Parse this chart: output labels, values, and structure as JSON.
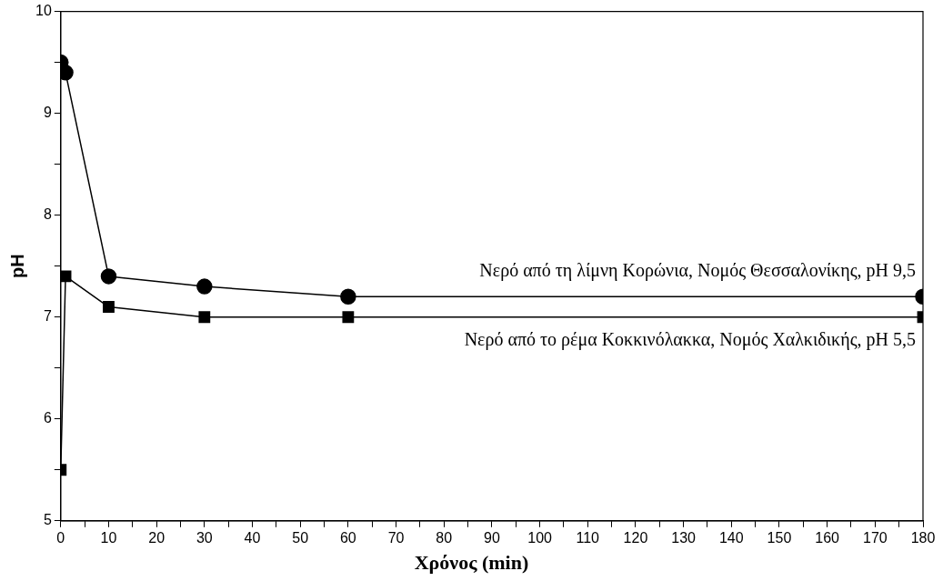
{
  "chart_data": {
    "type": "line",
    "xlabel": "Χρόνος (min)",
    "ylabel": "pH",
    "xlim": [
      0,
      180
    ],
    "xticks": [
      0,
      {
        "value": 5,
        "label": null
      },
      10,
      {
        "value": 15,
        "label": null
      },
      20,
      {
        "value": 25,
        "label": null
      },
      30,
      {
        "value": 35,
        "label": null
      },
      40,
      {
        "value": 45,
        "label": null
      },
      50,
      {
        "value": 55,
        "label": null
      },
      60,
      {
        "value": 65,
        "label": null
      },
      70,
      {
        "value": 75,
        "label": null
      },
      80,
      {
        "value": 85,
        "label": null
      },
      90,
      {
        "value": 95,
        "label": null
      },
      100,
      {
        "value": 105,
        "label": null
      },
      110,
      {
        "value": 115,
        "label": null
      },
      120,
      {
        "value": 125,
        "label": null
      },
      130,
      {
        "value": 135,
        "label": null
      },
      140,
      {
        "value": 145,
        "label": null
      },
      150,
      {
        "value": 155,
        "label": null
      },
      160,
      {
        "value": 165,
        "label": null
      },
      170,
      {
        "value": 175,
        "label": null
      },
      180
    ],
    "ylim": [
      5,
      10
    ],
    "yticks": [
      5,
      {
        "value": 5.5,
        "label": null
      },
      6,
      {
        "value": 6.5,
        "label": null
      },
      7,
      {
        "value": 7.5,
        "label": null
      },
      8,
      {
        "value": 8.5,
        "label": null
      },
      9,
      {
        "value": 9.5,
        "label": null
      },
      10
    ],
    "grid": false,
    "legend": false,
    "line_style": "solid",
    "series": [
      {
        "name": "Νερό από τη λίμνη Κορώνια, Νομός Θεσσαλονίκης, pH 9,5",
        "color": "#000000",
        "marker": "circle",
        "x": [
          0,
          1,
          10,
          30,
          60,
          180
        ],
        "values": [
          9.5,
          9.4,
          7.4,
          7.3,
          7.2,
          7.2
        ]
      },
      {
        "name": "Νερό από το ρέμα Κοκκινόλακκα, Νομός Χαλκιδικής, pH 5,5",
        "color": "#000000",
        "marker": "square",
        "x": [
          0,
          1,
          10,
          30,
          60,
          180
        ],
        "values": [
          5.5,
          7.4,
          7.1,
          7.0,
          7.0,
          7.0
        ]
      }
    ]
  }
}
